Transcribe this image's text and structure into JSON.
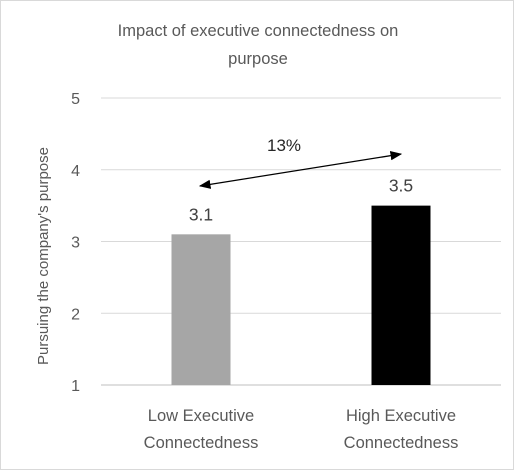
{
  "chart_data": {
    "type": "bar",
    "title": [
      "Impact of executive connectedness on",
      "purpose"
    ],
    "ylabel": "Pursuing the company's purpose",
    "xlabel": "",
    "ylim": [
      1,
      5
    ],
    "yticks": [
      1,
      2,
      3,
      4,
      5
    ],
    "grid": true,
    "legend": "none",
    "categories": [
      [
        "Low Executive",
        "Connectedness"
      ],
      [
        "High Executive",
        "Connectedness"
      ]
    ],
    "values": [
      3.1,
      3.5
    ],
    "data_labels": [
      "3.1",
      "3.5"
    ],
    "colors": [
      "#a6a6a6",
      "#000000"
    ],
    "annotation": {
      "text": "13%",
      "type": "double-arrow",
      "from_category": 0,
      "to_category": 1
    }
  }
}
